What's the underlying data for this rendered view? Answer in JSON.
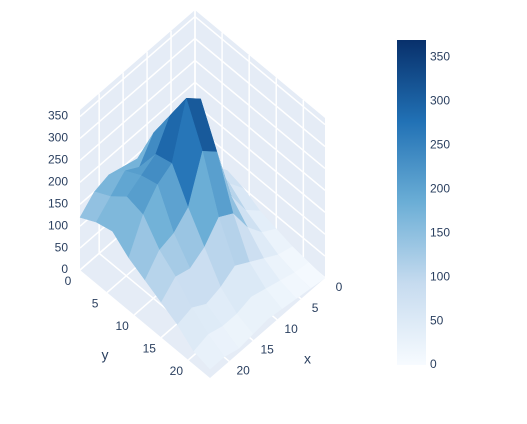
{
  "chart_data": {
    "type": "surface",
    "x": [
      0,
      3,
      6,
      9,
      12,
      15,
      18,
      21,
      24
    ],
    "y": [
      0,
      3,
      6,
      9,
      12,
      15,
      18,
      21,
      24
    ],
    "z": [
      [
        30,
        60,
        90,
        120,
        140,
        150,
        160,
        150,
        120
      ],
      [
        40,
        80,
        150,
        200,
        230,
        180,
        200,
        170,
        140
      ],
      [
        60,
        100,
        180,
        260,
        300,
        240,
        220,
        200,
        150
      ],
      [
        50,
        90,
        160,
        340,
        370,
        250,
        230,
        190,
        120
      ],
      [
        30,
        60,
        120,
        250,
        280,
        180,
        150,
        140,
        100
      ],
      [
        20,
        40,
        80,
        140,
        160,
        120,
        100,
        110,
        80
      ],
      [
        10,
        20,
        40,
        60,
        80,
        60,
        50,
        70,
        60
      ],
      [
        5,
        10,
        20,
        30,
        40,
        30,
        30,
        40,
        30
      ],
      [
        0,
        5,
        10,
        15,
        20,
        15,
        10,
        20,
        20
      ]
    ],
    "x_label": "x",
    "y_label": "y",
    "xlim": [
      0,
      24
    ],
    "ylim": [
      0,
      24
    ],
    "zlim": [
      0,
      365
    ],
    "xticks": [
      0,
      5,
      10,
      15,
      20
    ],
    "yticks": [
      0,
      5,
      10,
      15,
      20
    ],
    "zticks": [
      0,
      50,
      100,
      150,
      200,
      250,
      300,
      350
    ],
    "colorscale": [
      "#f7fbff",
      "#c6dbef",
      "#6baed6",
      "#2171b5",
      "#08306b"
    ],
    "colorbar_lim": [
      0,
      370
    ],
    "colorbar_ticks": [
      0,
      50,
      100,
      150,
      200,
      250,
      300,
      350
    ]
  }
}
